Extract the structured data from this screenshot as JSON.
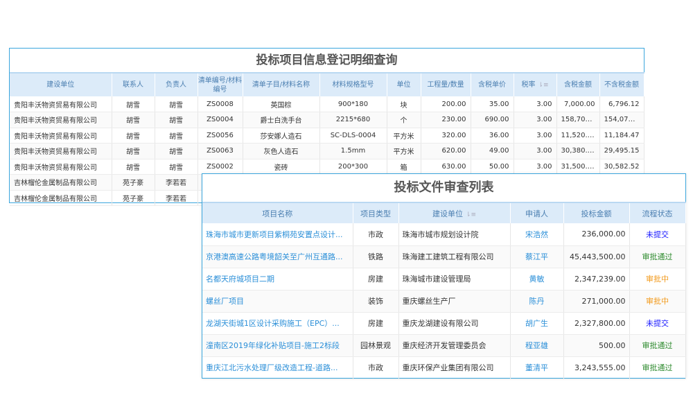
{
  "detail": {
    "title": "投标项目信息登记明细查询",
    "columns": [
      "建设单位",
      "联系人",
      "负责人",
      "清单编号/材料编号",
      "清单子目/材料名称",
      "材料规格型号",
      "单位",
      "工程量/数量",
      "含税单价",
      "税率",
      "含税金额",
      "不含税金额"
    ],
    "sort_column": "税率",
    "sort_icon": "sort-icon",
    "rows": [
      [
        "贵阳丰沃物资贸易有限公司",
        "胡雪",
        "胡雪",
        "ZS0008",
        "英国棕",
        "900*180",
        "块",
        "200.00",
        "35.00",
        "3.00",
        "7,000.00",
        "6,796.12"
      ],
      [
        "贵阳丰沃物资贸易有限公司",
        "胡雪",
        "胡雪",
        "ZS0004",
        "爵士白洗手台",
        "2215*680",
        "个",
        "230.00",
        "690.00",
        "3.00",
        "158,700...",
        "154,077...."
      ],
      [
        "贵阳丰沃物资贸易有限公司",
        "胡雪",
        "胡雪",
        "ZS0056",
        "莎安娜人造石",
        "SC-DLS-0004",
        "平方米",
        "320.00",
        "36.00",
        "3.00",
        "11,520.00",
        "11,184.47"
      ],
      [
        "贵阳丰沃物资贸易有限公司",
        "胡雪",
        "胡雪",
        "ZS0063",
        "灰色人造石",
        "1.5mm",
        "平方米",
        "620.00",
        "49.00",
        "3.00",
        "30,380.00",
        "29,495.15"
      ],
      [
        "贵阳丰沃物资贸易有限公司",
        "胡雪",
        "胡雪",
        "ZS0002",
        "瓷砖",
        "200*300",
        "箱",
        "630.00",
        "50.00",
        "3.00",
        "31,500.00",
        "30,582.52"
      ],
      [
        "吉林榴伦金属制品有限公司",
        "苑子豪",
        "李若若",
        "",
        "",
        "",
        "",
        "",
        "",
        "",
        "",
        ""
      ],
      [
        "吉林榴伦金属制品有限公司",
        "苑子豪",
        "李若若",
        "",
        "",
        "",
        "",
        "",
        "",
        "",
        "",
        ""
      ]
    ]
  },
  "review": {
    "title": "投标文件审查列表",
    "columns": [
      "项目名称",
      "项目类型",
      "建设单位",
      "申请人",
      "投标金额",
      "流程状态"
    ],
    "sort_column": "建设单位",
    "status_colors": {
      "未提交": "#1a1aff",
      "审批通过": "#2e8b2e",
      "审批中": "#f29a1c"
    },
    "rows": [
      [
        "珠海市城市更新项目紫桐苑安置点设计...",
        "市政",
        "珠海市城市规划设计院",
        "宋浩然",
        "236,000.00",
        "未提交"
      ],
      [
        "京港澳高速公路粤境韶关至广州互通路...",
        "铁路",
        "珠海建工建筑工程有限公司",
        "蔡江平",
        "45,443,500.00",
        "审批通过"
      ],
      [
        "名都天府城项目二期",
        "房建",
        "珠海城市建设管理局",
        "黄敏",
        "2,347,239.00",
        "审批中"
      ],
      [
        "螺丝厂项目",
        "装饰",
        "重庆螺丝生产厂",
        "陈丹",
        "271,000.00",
        "审批中"
      ],
      [
        "龙湖天街城1区设计采购施工（EPC）...",
        "房建",
        "重庆龙湖建设有限公司",
        "胡广生",
        "2,327,800.00",
        "未提交"
      ],
      [
        "潼南区2019年绿化补贴项目-施工2标段",
        "园林景观",
        "重庆经济开发管理委员会",
        "程亚雄",
        "500.00",
        "审批通过"
      ],
      [
        "重庆江北污水处理厂级改造工程-道路...",
        "市政",
        "重庆环保产业集团有限公司",
        "董清平",
        "3,243,555.00",
        "审批通过"
      ]
    ]
  }
}
